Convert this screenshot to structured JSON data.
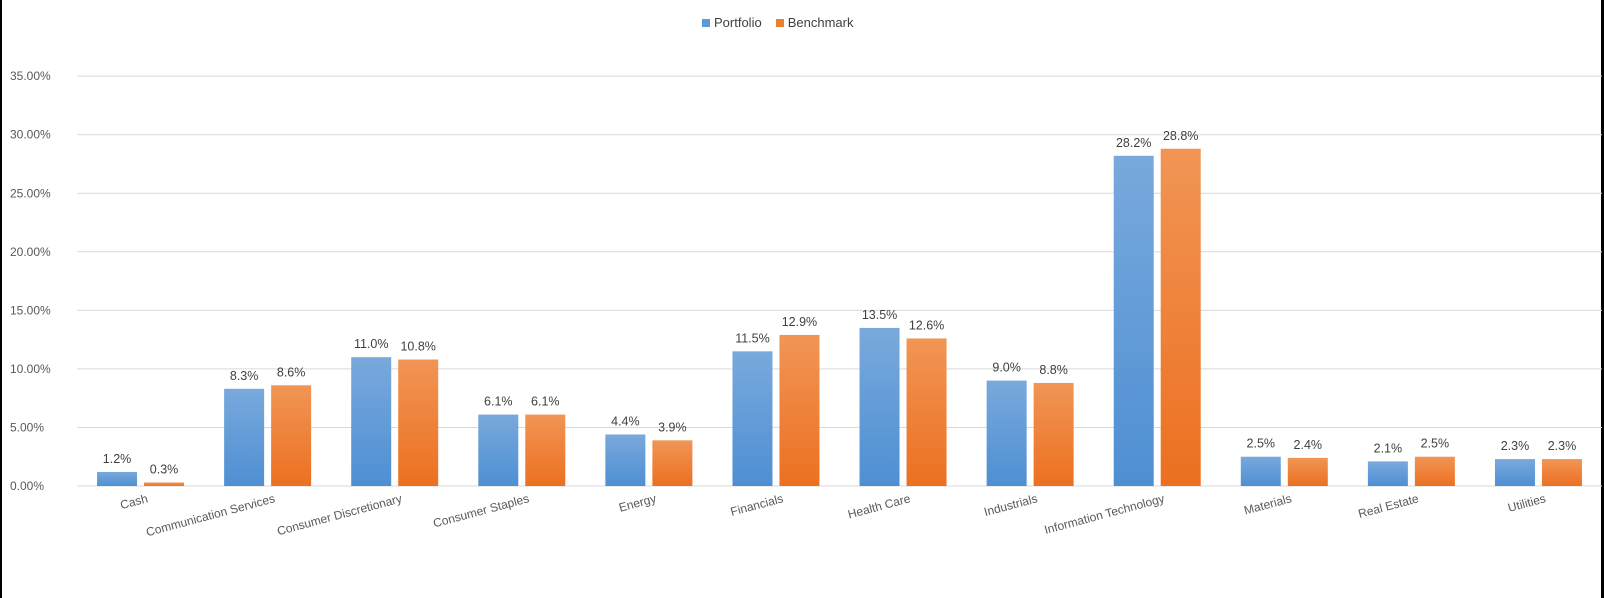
{
  "colors": {
    "portfolio_top": "#79a9dc",
    "portfolio_bottom": "#4e8fd3",
    "benchmark_top": "#f19555",
    "benchmark_bottom": "#ec7020",
    "grid": "#d9d9d9"
  },
  "legend": {
    "portfolio": "Portfolio",
    "benchmark": "Benchmark",
    "placement": "top-center"
  },
  "chart_data": {
    "type": "bar",
    "title": "",
    "xlabel": "",
    "ylabel": "",
    "ylim": [
      0,
      35
    ],
    "yticks": [
      0,
      5,
      10,
      15,
      20,
      25,
      30,
      35
    ],
    "ytick_labels": [
      "0.00%",
      "5.00%",
      "10.00%",
      "15.00%",
      "20.00%",
      "25.00%",
      "30.00%",
      "35.00%"
    ],
    "grid": true,
    "categories": [
      "Cash",
      "Communication Services",
      "Consumer Discretionary",
      "Consumer Staples",
      "Energy",
      "Financials",
      "Health Care",
      "Industrials",
      "Information Technology",
      "Materials",
      "Real Estate",
      "Utilities"
    ],
    "series": [
      {
        "name": "Portfolio",
        "values": [
          1.2,
          8.3,
          11.0,
          6.1,
          4.4,
          11.5,
          13.5,
          9.0,
          28.2,
          2.5,
          2.1,
          2.3
        ],
        "labels": [
          "1.2%",
          "8.3%",
          "11.0%",
          "6.1%",
          "4.4%",
          "11.5%",
          "13.5%",
          "9.0%",
          "28.2%",
          "2.5%",
          "2.1%",
          "2.3%"
        ]
      },
      {
        "name": "Benchmark",
        "values": [
          0.3,
          8.6,
          10.8,
          6.1,
          3.9,
          12.9,
          12.6,
          8.8,
          28.8,
          2.4,
          2.5,
          2.3
        ],
        "labels": [
          "0.3%",
          "8.6%",
          "10.8%",
          "6.1%",
          "3.9%",
          "12.9%",
          "12.6%",
          "8.8%",
          "28.8%",
          "2.4%",
          "2.5%",
          "2.3%"
        ]
      }
    ]
  }
}
